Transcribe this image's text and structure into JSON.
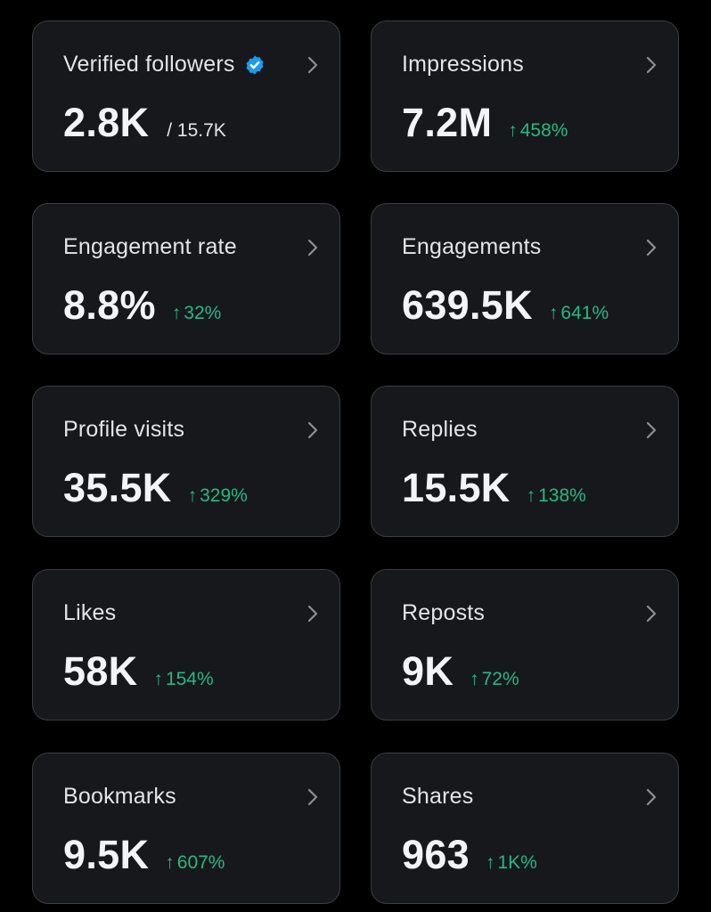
{
  "colors": {
    "background": "#000000",
    "card": "#16181c",
    "card_border": "#3a3e43",
    "text": "#e2e5e8",
    "positive": "#28b882",
    "verified": "#1d9bf0"
  },
  "cards": [
    {
      "label": "Verified followers",
      "value": "2.8K",
      "sub": "/ 15.7K",
      "icon": "verified-badge-icon"
    },
    {
      "label": "Impressions",
      "value": "7.2M",
      "change": "458%",
      "arrow": "↑"
    },
    {
      "label": "Engagement rate",
      "value": "8.8%",
      "change": "32%",
      "arrow": "↑"
    },
    {
      "label": "Engagements",
      "value": "639.5K",
      "change": "641%",
      "arrow": "↑"
    },
    {
      "label": "Profile visits",
      "value": "35.5K",
      "change": "329%",
      "arrow": "↑"
    },
    {
      "label": "Replies",
      "value": "15.5K",
      "change": "138%",
      "arrow": "↑"
    },
    {
      "label": "Likes",
      "value": "58K",
      "change": "154%",
      "arrow": "↑"
    },
    {
      "label": "Reposts",
      "value": "9K",
      "change": "72%",
      "arrow": "↑"
    },
    {
      "label": "Bookmarks",
      "value": "9.5K",
      "change": "607%",
      "arrow": "↑"
    },
    {
      "label": "Shares",
      "value": "963",
      "change": "1K%",
      "arrow": "↑"
    }
  ]
}
